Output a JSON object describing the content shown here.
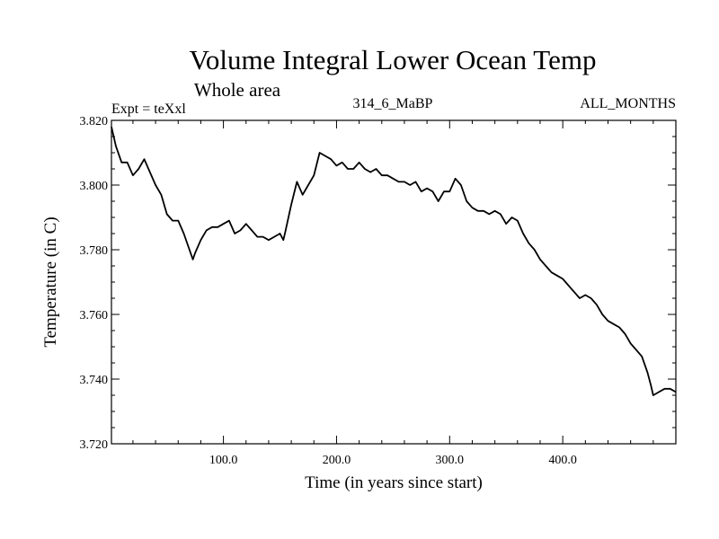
{
  "chart_data": {
    "type": "line",
    "title": "Volume Integral Lower Ocean Temp",
    "subtitle": "Whole area",
    "left_label": "Expt = teXxl",
    "center_label": "314_6_MaBP",
    "right_label": "ALL_MONTHS",
    "xlabel": "Time (in years since start)",
    "ylabel": "Temperature (in C)",
    "xlim": [
      1,
      500
    ],
    "ylim": [
      3.72,
      3.82
    ],
    "x_ticks": [
      100,
      200,
      300,
      400
    ],
    "x_tick_labels": [
      "100.0",
      "200.0",
      "300.0",
      "400.0"
    ],
    "y_ticks": [
      3.72,
      3.74,
      3.76,
      3.78,
      3.8,
      3.82
    ],
    "y_tick_labels": [
      "3.720",
      "3.740",
      "3.760",
      "3.780",
      "3.800",
      "3.820"
    ],
    "grid": false,
    "series": [
      {
        "name": "Volume Integral Lower Ocean Temp",
        "x": [
          1,
          5,
          10,
          15,
          20,
          25,
          30,
          35,
          40,
          45,
          50,
          55,
          60,
          65,
          70,
          73,
          75,
          80,
          85,
          90,
          95,
          100,
          105,
          110,
          115,
          120,
          125,
          130,
          135,
          140,
          145,
          150,
          153,
          155,
          160,
          165,
          170,
          175,
          180,
          185,
          190,
          195,
          200,
          205,
          210,
          215,
          220,
          225,
          230,
          235,
          240,
          245,
          250,
          255,
          260,
          265,
          270,
          275,
          280,
          285,
          290,
          295,
          300,
          305,
          310,
          315,
          320,
          325,
          330,
          335,
          340,
          345,
          350,
          355,
          360,
          365,
          370,
          375,
          380,
          385,
          390,
          395,
          400,
          405,
          410,
          415,
          420,
          425,
          430,
          435,
          440,
          445,
          450,
          455,
          460,
          465,
          470,
          475,
          478,
          480,
          485,
          490,
          495,
          500
        ],
        "y": [
          3.818,
          3.812,
          3.807,
          3.807,
          3.803,
          3.805,
          3.808,
          3.804,
          3.8,
          3.797,
          3.791,
          3.789,
          3.789,
          3.785,
          3.78,
          3.777,
          3.779,
          3.783,
          3.786,
          3.787,
          3.787,
          3.788,
          3.789,
          3.785,
          3.786,
          3.788,
          3.786,
          3.784,
          3.784,
          3.783,
          3.784,
          3.785,
          3.783,
          3.786,
          3.794,
          3.801,
          3.797,
          3.8,
          3.803,
          3.81,
          3.809,
          3.808,
          3.806,
          3.807,
          3.805,
          3.805,
          3.807,
          3.805,
          3.804,
          3.805,
          3.803,
          3.803,
          3.802,
          3.801,
          3.801,
          3.8,
          3.801,
          3.798,
          3.799,
          3.798,
          3.795,
          3.798,
          3.798,
          3.802,
          3.8,
          3.795,
          3.793,
          3.792,
          3.792,
          3.791,
          3.792,
          3.791,
          3.788,
          3.79,
          3.789,
          3.785,
          3.782,
          3.78,
          3.777,
          3.775,
          3.773,
          3.772,
          3.771,
          3.769,
          3.767,
          3.765,
          3.766,
          3.765,
          3.763,
          3.76,
          3.758,
          3.757,
          3.756,
          3.754,
          3.751,
          3.749,
          3.747,
          3.742,
          3.738,
          3.735,
          3.736,
          3.737,
          3.737,
          3.736
        ]
      }
    ]
  }
}
